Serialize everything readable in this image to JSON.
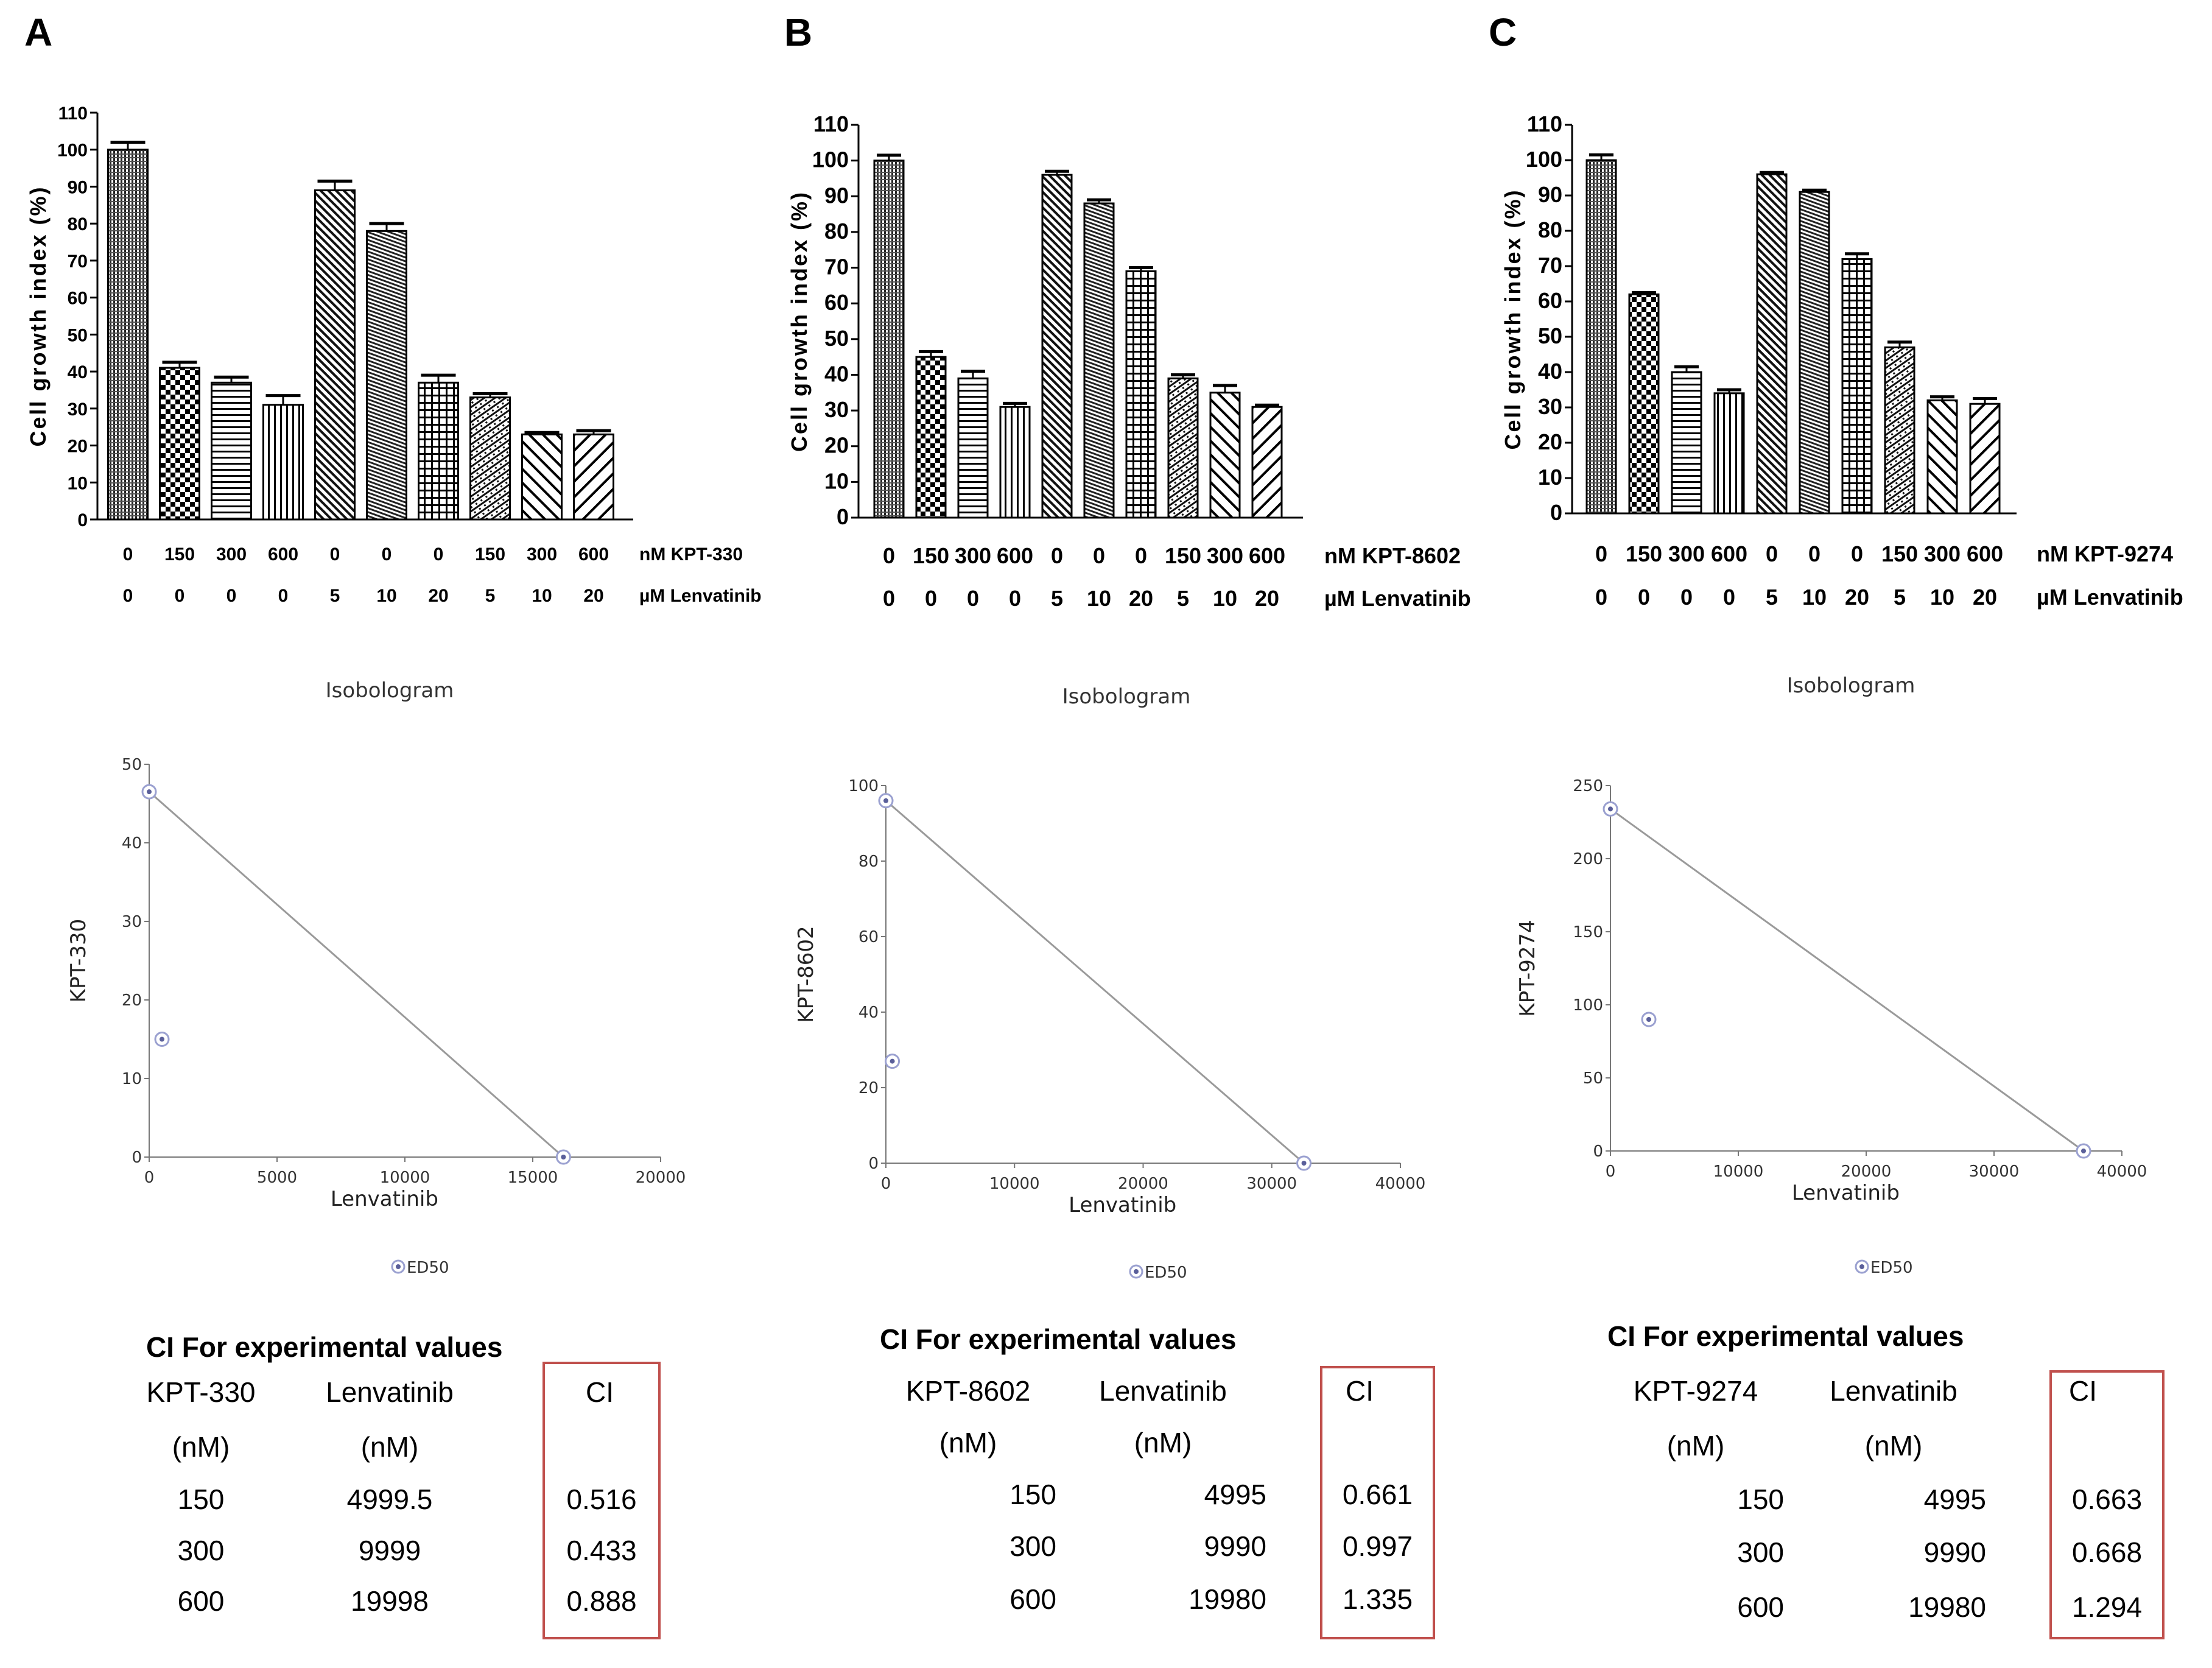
{
  "panels": [
    {
      "letter": "A",
      "bar_chart": {
        "type": "bar",
        "ylabel": "Cell growth index (%)",
        "ylim": [
          0,
          110
        ],
        "yticks": [
          0,
          10,
          20,
          30,
          40,
          50,
          60,
          70,
          80,
          90,
          100,
          110
        ],
        "row1_label": "nM KPT-330",
        "row2_label": "µM Lenvatinib",
        "row1": [
          "0",
          "150",
          "300",
          "600",
          "0",
          "0",
          "0",
          "150",
          "300",
          "600"
        ],
        "row2": [
          "0",
          "0",
          "0",
          "0",
          "5",
          "10",
          "20",
          "5",
          "10",
          "20"
        ],
        "values": [
          100,
          41,
          37,
          31,
          89,
          78,
          37,
          33,
          23,
          23
        ],
        "errors": [
          2,
          1.5,
          1.5,
          2.5,
          2.5,
          2,
          2,
          1,
          0.5,
          1
        ]
      },
      "isobologram": {
        "type": "scatter",
        "title": "Isobologram",
        "ylabel": "KPT-330",
        "xlabel": "Lenvatinib",
        "xlim": [
          0,
          20000
        ],
        "xticks": [
          0,
          5000,
          10000,
          15000,
          20000
        ],
        "ylim": [
          0,
          50
        ],
        "yticks": [
          0,
          10,
          20,
          30,
          40,
          50
        ],
        "line": [
          [
            0,
            46.5
          ],
          [
            16200,
            0
          ]
        ],
        "points": [
          [
            0,
            46.5
          ],
          [
            16200,
            0
          ],
          [
            500,
            15
          ]
        ],
        "legend": "ED50"
      },
      "ci_table": {
        "title": "CI For experimental values",
        "headers": [
          "KPT-330",
          "Lenvatinib",
          "CI"
        ],
        "units": [
          "(nM)",
          "(nM)",
          ""
        ],
        "rows": [
          [
            "150",
            "4999.5",
            "0.516"
          ],
          [
            "300",
            "9999",
            "0.433"
          ],
          [
            "600",
            "19998",
            "0.888"
          ]
        ]
      }
    },
    {
      "letter": "B",
      "bar_chart": {
        "type": "bar",
        "ylabel": "Cell growth index (%)",
        "ylim": [
          0,
          110
        ],
        "yticks": [
          0,
          10,
          20,
          30,
          40,
          50,
          60,
          70,
          80,
          90,
          100,
          110
        ],
        "row1_label": "nM KPT-8602",
        "row2_label": "µM Lenvatinib",
        "row1": [
          "0",
          "150",
          "300",
          "600",
          "0",
          "0",
          "0",
          "150",
          "300",
          "600"
        ],
        "row2": [
          "0",
          "0",
          "0",
          "0",
          "5",
          "10",
          "20",
          "5",
          "10",
          "20"
        ],
        "values": [
          100,
          45,
          39,
          31,
          96,
          88,
          69,
          39,
          35,
          31
        ],
        "errors": [
          1.5,
          1.5,
          2,
          1,
          1,
          1,
          1,
          1,
          2,
          0.5
        ]
      },
      "isobologram": {
        "type": "scatter",
        "title": "Isobologram",
        "ylabel": "KPT-8602",
        "xlabel": "Lenvatinib",
        "xlim": [
          0,
          40000
        ],
        "xticks": [
          0,
          10000,
          20000,
          30000,
          40000
        ],
        "ylim": [
          0,
          100
        ],
        "yticks": [
          0,
          20,
          40,
          60,
          80,
          100
        ],
        "line": [
          [
            0,
            96
          ],
          [
            32500,
            0
          ]
        ],
        "points": [
          [
            0,
            96
          ],
          [
            32500,
            0
          ],
          [
            500,
            27
          ]
        ],
        "legend": "ED50"
      },
      "ci_table": {
        "title": "CI For experimental values",
        "headers": [
          "KPT-8602",
          "Lenvatinib",
          "CI"
        ],
        "units": [
          "(nM)",
          "(nM)",
          ""
        ],
        "rows": [
          [
            "150",
            "4995",
            "0.661"
          ],
          [
            "300",
            "9990",
            "0.997"
          ],
          [
            "600",
            "19980",
            "1.335"
          ]
        ]
      }
    },
    {
      "letter": "C",
      "bar_chart": {
        "type": "bar",
        "ylabel": "Cell growth index (%)",
        "ylim": [
          0,
          110
        ],
        "yticks": [
          0,
          10,
          20,
          30,
          40,
          50,
          60,
          70,
          80,
          90,
          100,
          110
        ],
        "row1_label": "nM KPT-9274",
        "row2_label": "µM Lenvatinib",
        "row1": [
          "0",
          "150",
          "300",
          "600",
          "0",
          "0",
          "0",
          "150",
          "300",
          "600"
        ],
        "row2": [
          "0",
          "0",
          "0",
          "0",
          "5",
          "10",
          "20",
          "5",
          "10",
          "20"
        ],
        "values": [
          100,
          62,
          40,
          34,
          96,
          91,
          72,
          47,
          32,
          31
        ],
        "errors": [
          1.5,
          0.5,
          1.5,
          1,
          0.5,
          0.5,
          1.5,
          1.5,
          1,
          1.5
        ]
      },
      "isobologram": {
        "type": "scatter",
        "title": "Isobologram",
        "ylabel": "KPT-9274",
        "xlabel": "Lenvatinib",
        "xlim": [
          0,
          40000
        ],
        "xticks": [
          0,
          10000,
          20000,
          30000,
          40000
        ],
        "ylim": [
          0,
          250
        ],
        "yticks": [
          0,
          50,
          100,
          150,
          200,
          250
        ],
        "line": [
          [
            0,
            234
          ],
          [
            37000,
            0
          ]
        ],
        "points": [
          [
            0,
            234
          ],
          [
            37000,
            0
          ],
          [
            3000,
            90
          ]
        ],
        "legend": "ED50"
      },
      "ci_table": {
        "title": "CI For experimental values",
        "headers": [
          "KPT-9274",
          "Lenvatinib",
          "CI"
        ],
        "units": [
          "(nM)",
          "(nM)",
          ""
        ],
        "rows": [
          [
            "150",
            "4995",
            "0.663"
          ],
          [
            "300",
            "9990",
            "0.668"
          ],
          [
            "600",
            "19980",
            "1.294"
          ]
        ]
      }
    }
  ]
}
